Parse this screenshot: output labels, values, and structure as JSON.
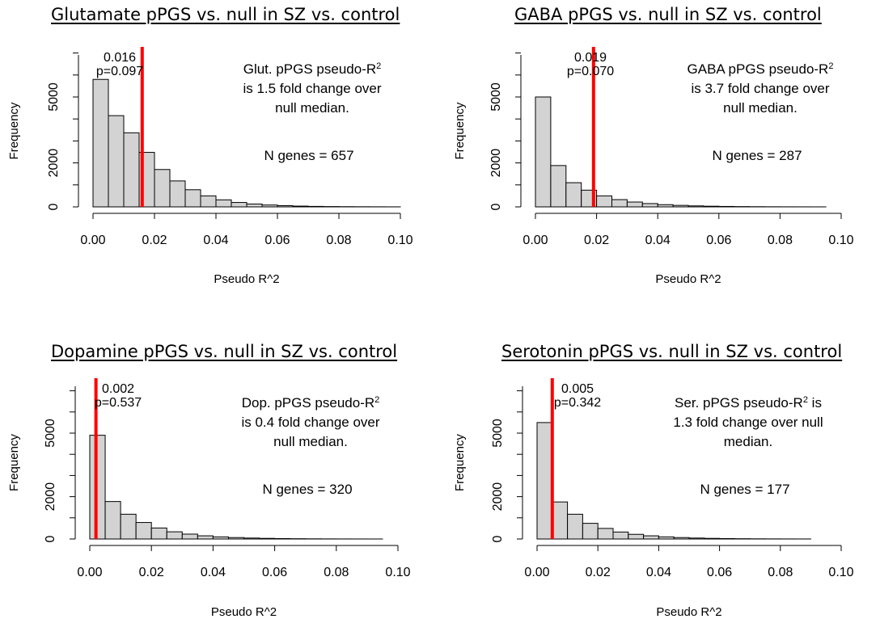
{
  "chart_data": [
    {
      "type": "bar",
      "title": "Glutamate pPGS vs. null in SZ vs. control",
      "xlabel": "Pseudo R^2",
      "ylabel": "Frequency",
      "xlim": [
        0,
        0.1
      ],
      "ylim": [
        0,
        7000
      ],
      "x_ticks": [
        "0.00",
        "0.02",
        "0.04",
        "0.06",
        "0.08",
        "0.10"
      ],
      "y_ticks": [
        "0",
        "2000",
        "5000"
      ],
      "bin_width": 0.005,
      "bin_start": 0,
      "values": [
        5800,
        4150,
        3370,
        2480,
        1700,
        1180,
        780,
        500,
        320,
        200,
        130,
        85,
        55,
        35,
        22,
        14,
        9,
        6,
        4,
        2
      ],
      "observed_line": {
        "x": 0.016,
        "color": "#ff0000"
      },
      "observed_label": [
        "0.016",
        "p=0.097"
      ],
      "annotation": {
        "line1_pre": "Glut. pPGS pseudo-R",
        "line1_sup": "2",
        "line2": "is 1.5 fold change over",
        "line3": "null median.",
        "genes": "N genes = 657"
      }
    },
    {
      "type": "bar",
      "title": "GABA pPGS vs. null in SZ vs. control",
      "xlabel": "Pseudo R^2",
      "ylabel": "Frequency",
      "xlim": [
        0,
        0.1
      ],
      "ylim": [
        0,
        7000
      ],
      "x_ticks": [
        "0.00",
        "0.02",
        "0.04",
        "0.06",
        "0.08",
        "0.10"
      ],
      "y_ticks": [
        "0",
        "2000",
        "5000"
      ],
      "bin_width": 0.005,
      "bin_start": 0,
      "values": [
        5000,
        1880,
        1100,
        760,
        500,
        330,
        220,
        150,
        100,
        68,
        45,
        30,
        20,
        13,
        8,
        5,
        3,
        2,
        1
      ],
      "observed_line": {
        "x": 0.019,
        "color": "#ff0000"
      },
      "observed_label": [
        "0.019",
        "p=0.070"
      ],
      "annotation": {
        "line1_pre": "GABA pPGS pseudo-R",
        "line1_sup": "2",
        "line2": "is 3.7 fold change over",
        "line3": "null median.",
        "genes": "N genes = 287"
      }
    },
    {
      "type": "bar",
      "title": "Dopamine pPGS vs. null in SZ vs. control",
      "xlabel": "Pseudo R^2",
      "ylabel": "Frequency",
      "xlim": [
        0,
        0.1
      ],
      "ylim": [
        0,
        7000
      ],
      "x_ticks": [
        "0.00",
        "0.02",
        "0.04",
        "0.06",
        "0.08",
        "0.10"
      ],
      "y_ticks": [
        "0",
        "2000",
        "5000"
      ],
      "bin_width": 0.005,
      "bin_start": 0,
      "values": [
        4900,
        1770,
        1170,
        780,
        520,
        340,
        230,
        150,
        100,
        68,
        45,
        30,
        20,
        13,
        8,
        5,
        3,
        2,
        1
      ],
      "observed_line": {
        "x": 0.002,
        "color": "#ff0000"
      },
      "observed_label": [
        "0.002",
        "p=0.537"
      ],
      "annotation": {
        "line1_pre": "Dop. pPGS pseudo-R",
        "line1_sup": "2",
        "line2": "is 0.4 fold change over",
        "line3": "null median.",
        "genes": "N genes = 320"
      }
    },
    {
      "type": "bar",
      "title": "Serotonin pPGS vs. null in SZ vs. control",
      "xlabel": "Pseudo R^2",
      "ylabel": "Frequency",
      "xlim": [
        0,
        0.1
      ],
      "ylim": [
        0,
        7000
      ],
      "x_ticks": [
        "0.00",
        "0.02",
        "0.04",
        "0.06",
        "0.08",
        "0.10"
      ],
      "y_ticks": [
        "0",
        "2000",
        "5000"
      ],
      "bin_width": 0.005,
      "bin_start": 0,
      "values": [
        5500,
        1750,
        1170,
        740,
        500,
        330,
        220,
        150,
        100,
        68,
        45,
        30,
        20,
        13,
        8,
        5,
        3,
        2
      ],
      "observed_line": {
        "x": 0.005,
        "color": "#ff0000"
      },
      "observed_label": [
        "0.005",
        "p=0.342"
      ],
      "annotation": {
        "line1_pre": "Ser. pPGS pseudo-R",
        "line1_sup": "2",
        "line1_post": " is",
        "line2": "1.3 fold change over null",
        "line3": "median.",
        "genes": "N genes = 177"
      }
    }
  ],
  "colors": {
    "bar_fill": "#d3d3d3",
    "bar_stroke": "#000000",
    "observed_line": "#ff0000"
  }
}
